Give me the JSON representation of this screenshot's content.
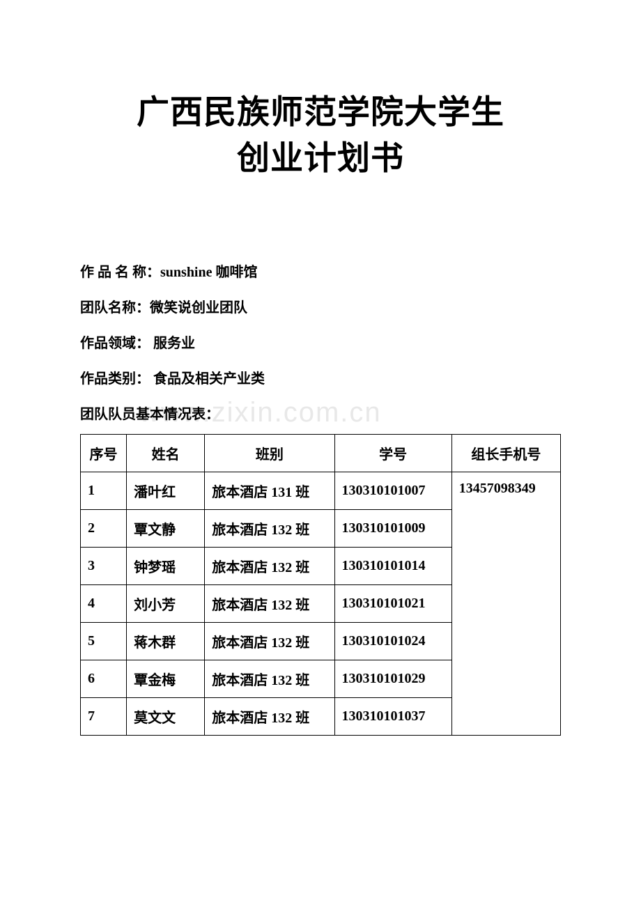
{
  "title": {
    "line1": "广西民族师范学院大学生",
    "line2": "创业计划书"
  },
  "info": {
    "work_name_label": "作 品 名 称：",
    "work_name_value": "sunshine 咖啡馆",
    "team_name_label": "团队名称：",
    "team_name_value": "微笑说创业团队",
    "field_label": "作品领域：",
    "field_value": "  服务业",
    "category_label": "作品类别：",
    "category_value": "  食品及相关产业类",
    "table_title": "团队队员基本情况表："
  },
  "watermark": "www.zixin.com.cn",
  "table": {
    "headers": {
      "seq": "序号",
      "name": "姓名",
      "class": "班别",
      "id": "学号",
      "phone": "组长手机号"
    },
    "rows": [
      {
        "seq": "1",
        "name": "潘叶红",
        "class": "旅本酒店 131 班",
        "id": "130310101007",
        "phone": "13457098349"
      },
      {
        "seq": "2",
        "name": "覃文静",
        "class": "旅本酒店 132 班",
        "id": "130310101009",
        "phone": ""
      },
      {
        "seq": "3",
        "name": "钟梦瑶",
        "class": "旅本酒店 132 班",
        "id": "130310101014",
        "phone": ""
      },
      {
        "seq": "4",
        "name": "刘小芳",
        "class": "旅本酒店 132 班",
        "id": "130310101021",
        "phone": ""
      },
      {
        "seq": "5",
        "name": "蒋木群",
        "class": "旅本酒店 132 班",
        "id": "130310101024",
        "phone": ""
      },
      {
        "seq": "6",
        "name": "覃金梅",
        "class": "旅本酒店 132 班",
        "id": "130310101029",
        "phone": ""
      },
      {
        "seq": "7",
        "name": "莫文文",
        "class": "旅本酒店 132 班",
        "id": "130310101037",
        "phone": ""
      }
    ]
  },
  "colors": {
    "background": "#ffffff",
    "text": "#000000",
    "border": "#000000",
    "watermark": "#e8e8e8"
  },
  "typography": {
    "title_fontsize": 47,
    "body_fontsize": 20,
    "watermark_fontsize": 40
  }
}
